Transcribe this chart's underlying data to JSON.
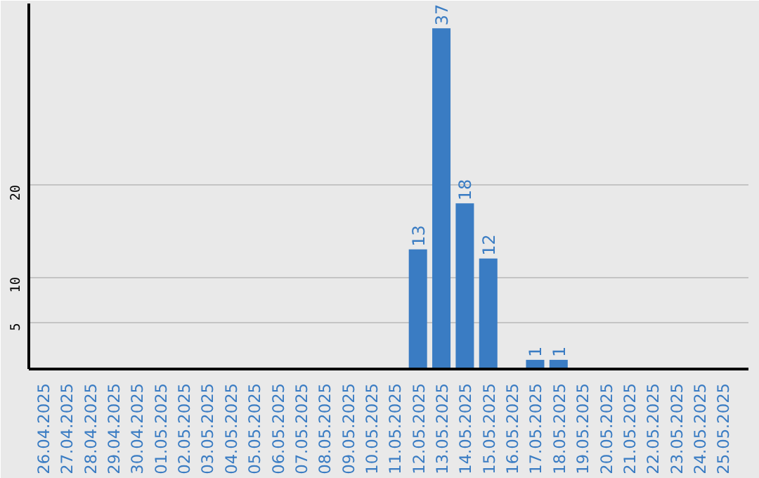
{
  "chart_data": {
    "type": "bar",
    "categories": [
      "26.04.2025",
      "27.04.2025",
      "28.04.2025",
      "29.04.2025",
      "30.04.2025",
      "01.05.2025",
      "02.05.2025",
      "03.05.2025",
      "04.05.2025",
      "05.05.2025",
      "06.05.2025",
      "07.05.2025",
      "08.05.2025",
      "09.05.2025",
      "10.05.2025",
      "11.05.2025",
      "12.05.2025",
      "13.05.2025",
      "14.05.2025",
      "15.05.2025",
      "16.05.2025",
      "17.05.2025",
      "18.05.2025",
      "19.05.2025",
      "20.05.2025",
      "21.05.2025",
      "22.05.2025",
      "23.05.2025",
      "24.05.2025",
      "25.05.2025"
    ],
    "values": [
      0,
      0,
      0,
      0,
      0,
      0,
      0,
      0,
      0,
      0,
      0,
      0,
      0,
      0,
      0,
      0,
      13,
      37,
      18,
      12,
      0,
      1,
      1,
      0,
      0,
      0,
      0,
      0,
      0,
      0
    ],
    "value_labels": [
      null,
      null,
      null,
      null,
      null,
      null,
      null,
      null,
      null,
      null,
      null,
      null,
      null,
      null,
      null,
      null,
      "13",
      "37",
      "18",
      "12",
      null,
      "1",
      "1",
      null,
      null,
      null,
      null,
      null,
      null,
      null
    ],
    "color": "#3a7cc3",
    "ylim": [
      0,
      39.7
    ],
    "yticks": [
      5,
      10,
      20
    ],
    "grid": "y"
  }
}
